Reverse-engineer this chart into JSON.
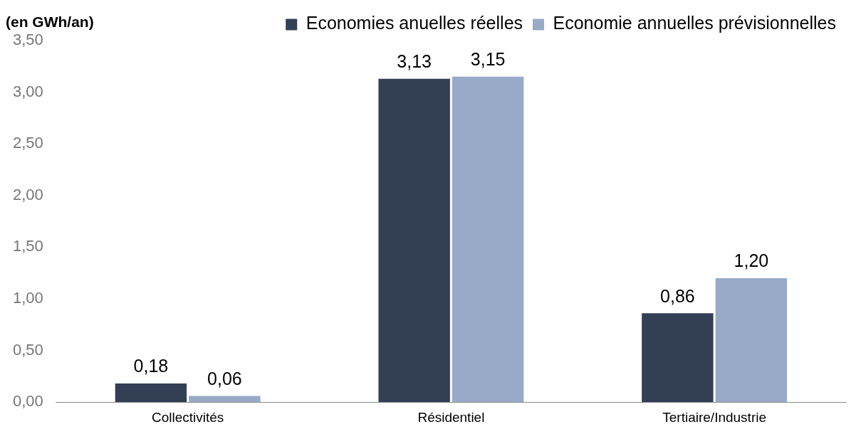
{
  "chart_data": {
    "type": "bar",
    "ylabel": "(en GWh/an)",
    "categories": [
      "Collectivités",
      "Résidentiel",
      "Tertiaire/Industrie"
    ],
    "series": [
      {
        "name": "Economies anuelles réelles",
        "color": "#333f55",
        "values": [
          0.18,
          3.13,
          0.86
        ],
        "value_labels": [
          "0,18",
          "3,13",
          "0,86"
        ]
      },
      {
        "name": "Economie annuelles prévisionnelles",
        "color": "#98aac8",
        "values": [
          0.06,
          3.15,
          1.2
        ],
        "value_labels": [
          "0,06",
          "3,15",
          "1,20"
        ]
      }
    ],
    "ylim": [
      0,
      3.5
    ],
    "yticks": [
      {
        "value": 0,
        "label": "0,00"
      },
      {
        "value": 0.5,
        "label": "0,50"
      },
      {
        "value": 1,
        "label": "1,00"
      },
      {
        "value": 1.5,
        "label": "1,50"
      },
      {
        "value": 2,
        "label": "2,00"
      },
      {
        "value": 2.5,
        "label": "2,50"
      },
      {
        "value": 3,
        "label": "3,00"
      },
      {
        "value": 3.5,
        "label": "3,50"
      }
    ],
    "grid": false,
    "legend": "top"
  }
}
